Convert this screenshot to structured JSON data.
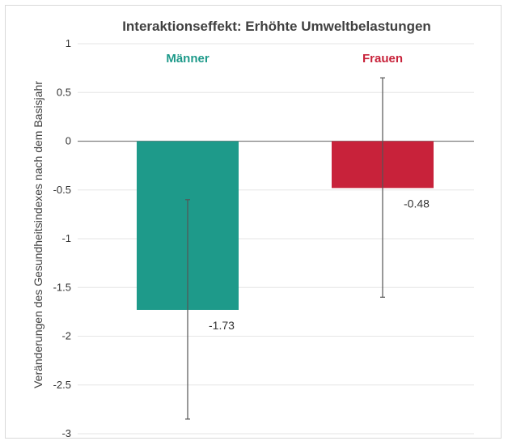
{
  "chart_data": {
    "type": "bar",
    "title": "Interaktionseffekt: Erhöhte Umweltbelastungen",
    "xlabel": "",
    "ylabel": "Veränderungen des Gesundheitsindexes nach dem Basisjahr",
    "categories": [
      "Männer",
      "Frauen"
    ],
    "values": [
      -1.73,
      -0.48
    ],
    "data_labels": [
      "-1.73",
      "-0.48"
    ],
    "error_bars": [
      {
        "low": -2.85,
        "high": -0.6
      },
      {
        "low": -1.6,
        "high": 0.65
      }
    ],
    "colors": [
      "#1e9a8a",
      "#c8223a"
    ],
    "ylim": [
      -3,
      1
    ],
    "yticks": [
      1,
      0.5,
      0,
      -0.5,
      -1,
      -1.5,
      -2,
      -2.5,
      -3
    ],
    "ytick_labels": [
      "1",
      "0.5",
      "0",
      "-0.5",
      "-1",
      "-1.5",
      "-2",
      "-2.5",
      "-3"
    ],
    "grid": true,
    "legend": "none"
  }
}
